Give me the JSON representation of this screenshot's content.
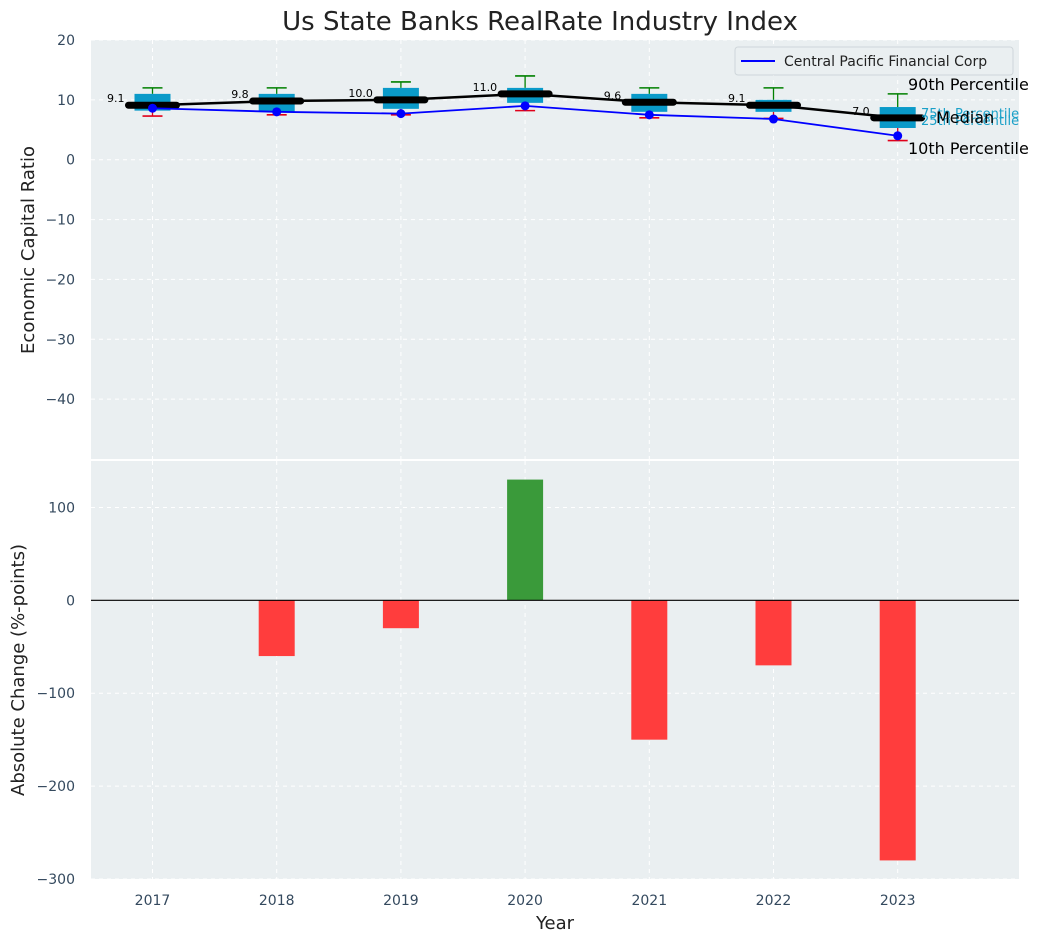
{
  "chart_data": {
    "type": "box",
    "title": "Us State Banks RealRate Industry Index",
    "categories": [
      "2017",
      "2018",
      "2019",
      "2020",
      "2021",
      "2022",
      "2023"
    ],
    "xlabel": "Year",
    "top": {
      "ylabel": "Economic Capital Ratio",
      "ylim": [
        -50,
        20
      ],
      "yticks": [
        "20",
        "10",
        "0",
        "−10",
        "−20",
        "−30",
        "−40"
      ],
      "yticks_values": [
        20,
        10,
        0,
        -10,
        -20,
        -30,
        -40
      ],
      "p10": [
        7.3,
        7.5,
        7.5,
        8.2,
        7.0,
        6.9,
        3.2
      ],
      "p25": [
        8.2,
        8.0,
        8.5,
        9.5,
        8.0,
        8.0,
        5.3
      ],
      "median": [
        9.1,
        9.8,
        10.0,
        11.0,
        9.6,
        9.1,
        7.0
      ],
      "p75": [
        11.0,
        11.0,
        12.0,
        12.0,
        11.0,
        10.0,
        8.8
      ],
      "p90": [
        12.0,
        12.0,
        13.0,
        14.0,
        12.0,
        12.0,
        11.0
      ],
      "median_labels": [
        "9.1",
        "9.8",
        "10.0",
        "11.0",
        "9.6",
        "9.1",
        "7.0"
      ],
      "company": {
        "name": "Central Pacific Financial Corp",
        "values": [
          8.6,
          8.0,
          7.7,
          9.0,
          7.5,
          6.8,
          4.0
        ]
      },
      "annotations": {
        "p90": "90th Percentile",
        "p75": "75th Percentile",
        "median": "Median",
        "p25": "25th Percentile",
        "p10": "10th Percentile"
      },
      "legend_position": "top-right"
    },
    "bottom": {
      "ylabel": "Absolute Change (%-points)",
      "ylim": [
        -300,
        150
      ],
      "yticks": [
        "100",
        "0",
        "−100",
        "−200",
        "−300"
      ],
      "yticks_values": [
        100,
        0,
        -100,
        -200,
        -300
      ],
      "values": [
        0,
        -60,
        -30,
        130,
        -150,
        -70,
        -280
      ]
    },
    "colors": {
      "background": "#eaeff1",
      "box": "#0a9ac9",
      "median": "#000000",
      "company": "#0000ff",
      "whisker_high": "#008000",
      "whisker_low": "#e0001a",
      "positive": "#3a9a3a",
      "negative": "#ff3d3d",
      "annotation_inner": "#1aa0c8",
      "text": "#222222",
      "tick": "#34495e"
    }
  }
}
